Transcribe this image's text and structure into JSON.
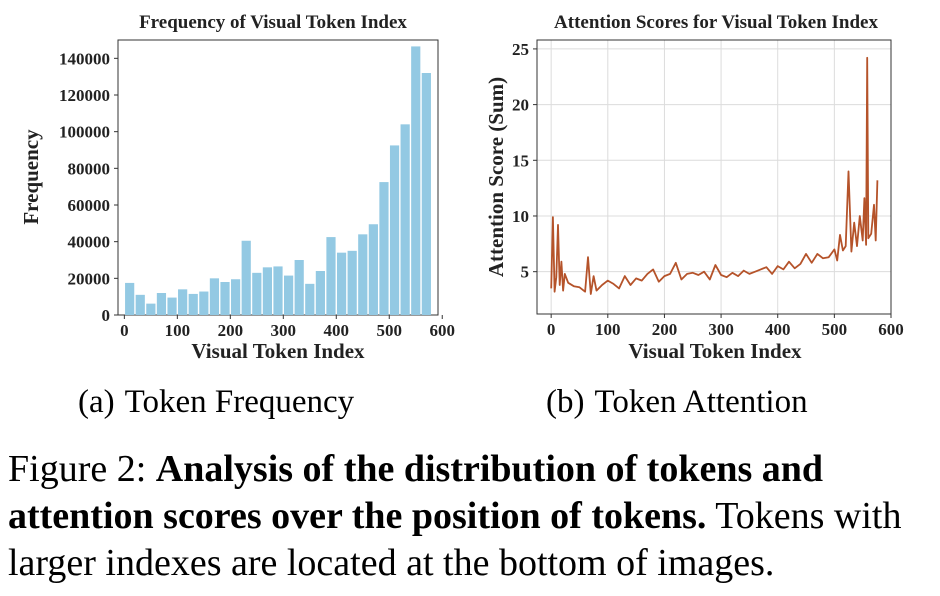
{
  "chart_data": [
    {
      "type": "bar",
      "title": "Frequency of Visual Token Index",
      "xlabel": "Visual Token Index",
      "ylabel": "Frequency",
      "xlim": [
        -12,
        592
      ],
      "ylim": [
        0,
        150000
      ],
      "xticks": [
        0,
        100,
        200,
        300,
        400,
        500,
        600
      ],
      "yticks": [
        0,
        20000,
        40000,
        60000,
        80000,
        100000,
        120000,
        140000
      ],
      "grid": false,
      "color": "#93c9e3",
      "bin_width": 20,
      "x": [
        10,
        30,
        50,
        70,
        90,
        110,
        130,
        150,
        170,
        190,
        210,
        230,
        250,
        270,
        290,
        310,
        330,
        350,
        370,
        390,
        410,
        430,
        450,
        470,
        490,
        510,
        530,
        550,
        570
      ],
      "values": [
        17500,
        11000,
        6200,
        12000,
        9500,
        14000,
        11500,
        12800,
        20000,
        18000,
        19500,
        40500,
        23000,
        26000,
        26500,
        21500,
        30000,
        17000,
        24000,
        42500,
        34000,
        35000,
        44000,
        49500,
        72500,
        92500,
        104000,
        146500,
        132000
      ]
    },
    {
      "type": "line",
      "title": "Attention Scores for Visual Token Index",
      "xlabel": "Visual Token Index",
      "ylabel": "Attention Score (Sum)",
      "xlim": [
        -25,
        600
      ],
      "ylim": [
        1.2,
        25.8
      ],
      "xticks": [
        0,
        100,
        200,
        300,
        400,
        500,
        600
      ],
      "yticks": [
        5,
        10,
        15,
        20,
        25
      ],
      "grid": true,
      "color": "#b5532a",
      "x": [
        0,
        3,
        6,
        9,
        12,
        15,
        18,
        21,
        24,
        30,
        40,
        50,
        60,
        65,
        70,
        75,
        80,
        90,
        100,
        110,
        120,
        130,
        140,
        150,
        160,
        170,
        180,
        190,
        200,
        210,
        220,
        230,
        240,
        250,
        260,
        270,
        280,
        290,
        300,
        310,
        320,
        330,
        340,
        350,
        360,
        370,
        380,
        390,
        400,
        410,
        420,
        430,
        440,
        450,
        460,
        470,
        480,
        490,
        500,
        505,
        510,
        515,
        520,
        525,
        530,
        535,
        540,
        545,
        550,
        553,
        556,
        558,
        560,
        565,
        570,
        573,
        576
      ],
      "values": [
        3.5,
        9.9,
        3.2,
        4.5,
        9.2,
        3.8,
        5.9,
        3.3,
        4.8,
        4.0,
        3.7,
        3.6,
        3.2,
        6.3,
        3.0,
        4.6,
        3.3,
        3.8,
        4.2,
        3.9,
        3.5,
        4.6,
        3.8,
        4.4,
        4.2,
        4.8,
        5.2,
        4.1,
        4.6,
        4.8,
        5.8,
        4.3,
        4.8,
        4.9,
        4.7,
        5.0,
        4.3,
        5.6,
        4.7,
        4.5,
        4.9,
        4.6,
        5.1,
        4.8,
        5.0,
        5.2,
        5.4,
        4.8,
        5.5,
        5.2,
        5.9,
        5.3,
        5.7,
        6.6,
        5.8,
        6.6,
        6.2,
        6.3,
        7.0,
        6.0,
        8.3,
        6.9,
        7.3,
        14.0,
        6.8,
        9.4,
        7.3,
        10.0,
        7.8,
        11.6,
        7.4,
        24.2,
        8.0,
        8.4,
        11.0,
        7.8,
        13.2
      ]
    }
  ],
  "captions": {
    "a_label": "(a)",
    "a_text": "Token Frequency",
    "b_label": "(b)",
    "b_text": "Token Attention"
  },
  "figure_caption": {
    "prefix": "Figure 2: ",
    "bold": "Analysis of the distribution of tokens and attention scores over the position of tokens.",
    "rest": " Tokens with larger indexes are located at the bottom of images."
  }
}
